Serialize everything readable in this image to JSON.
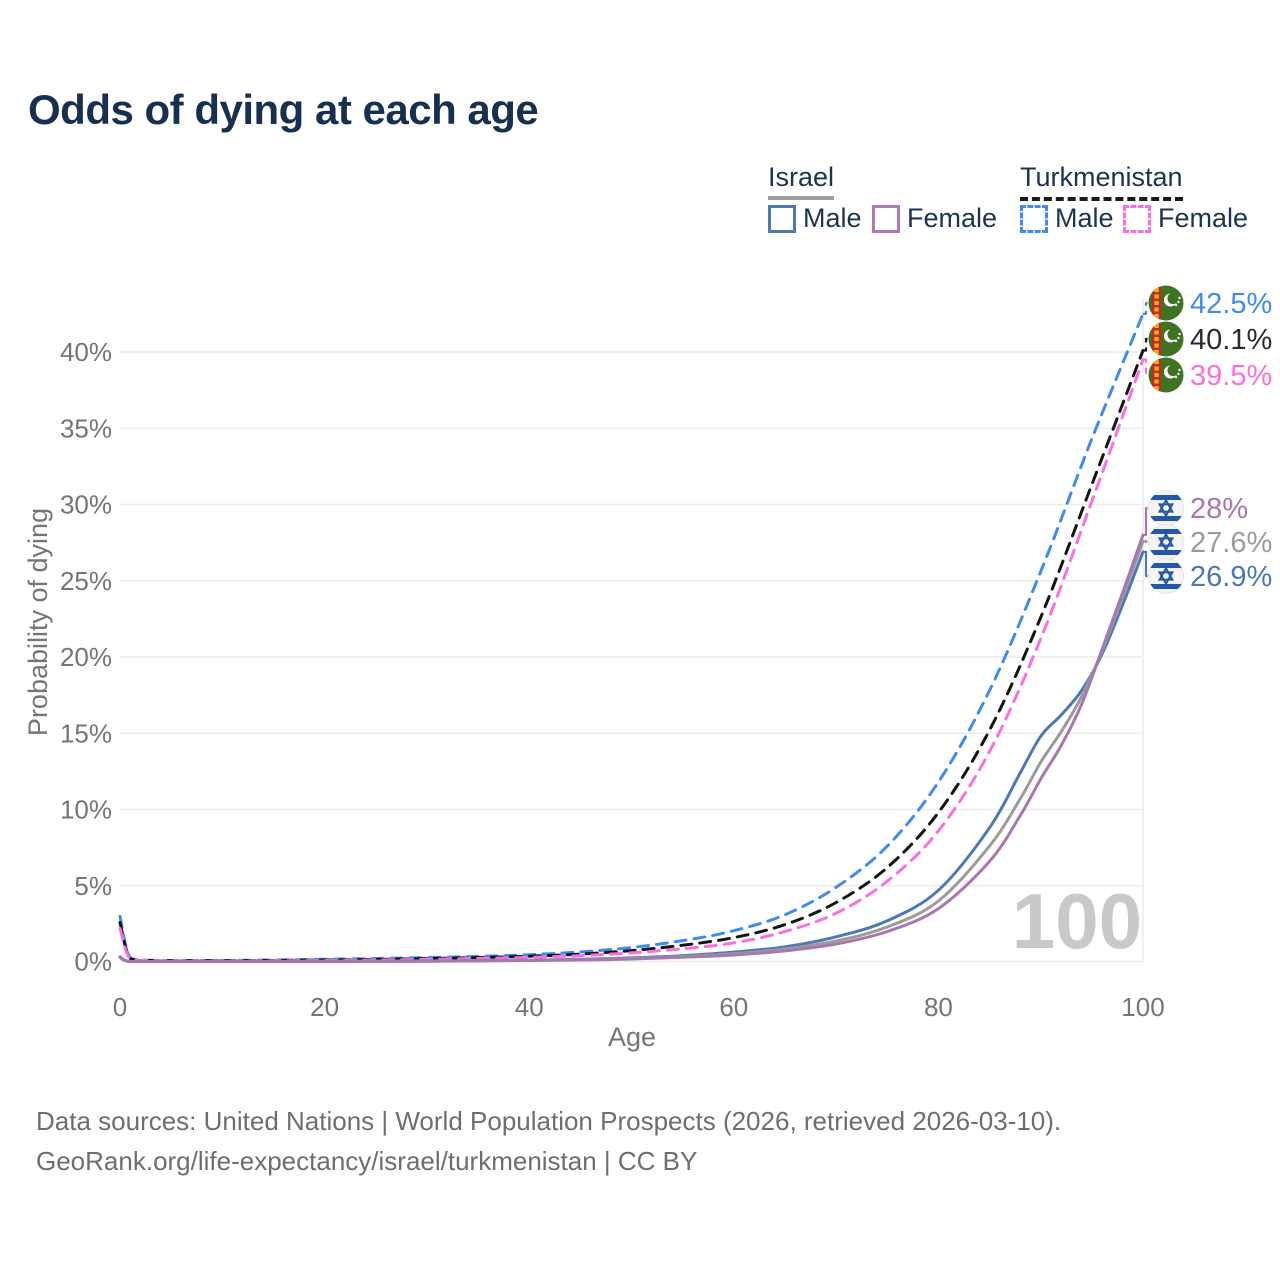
{
  "title": "Odds of dying at each age",
  "legend": {
    "groups": [
      {
        "label": "Israel",
        "line_style": "solid",
        "underline_color": "#9e9e9e",
        "items": [
          {
            "label": "Male",
            "color": "#4b79b7"
          },
          {
            "label": "Female",
            "color": "#b27ab5"
          }
        ]
      },
      {
        "label": "Turkmenistan",
        "line_style": "dashed",
        "underline_color": "#1a1a1a",
        "items": [
          {
            "label": "Male",
            "color": "#3e8bf3"
          },
          {
            "label": "Female",
            "color": "#fa6fe2"
          }
        ]
      }
    ]
  },
  "chart_data": {
    "type": "line",
    "title": "Odds of dying at each age",
    "xlabel": "Age",
    "ylabel": "Probability of dying",
    "xlim": [
      0,
      100
    ],
    "ylim": [
      0,
      44
    ],
    "grid": "horizontal",
    "watermark": "100",
    "x_ticks": [
      {
        "label": "0",
        "value": 0
      },
      {
        "label": "20",
        "value": 20
      },
      {
        "label": "40",
        "value": 40
      },
      {
        "label": "60",
        "value": 60
      },
      {
        "label": "80",
        "value": 80
      },
      {
        "label": "100",
        "value": 100
      }
    ],
    "y_ticks": [
      {
        "label": "0%",
        "value": 0
      },
      {
        "label": "5%",
        "value": 5
      },
      {
        "label": "10%",
        "value": 10
      },
      {
        "label": "15%",
        "value": 15
      },
      {
        "label": "20%",
        "value": 20
      },
      {
        "label": "25%",
        "value": 25
      },
      {
        "label": "30%",
        "value": 30
      },
      {
        "label": "35%",
        "value": 35
      },
      {
        "label": "40%",
        "value": 40
      }
    ],
    "series": [
      {
        "name": "turkmenistan_male",
        "country": "Turkmenistan",
        "sex": "Male",
        "color": "#3e8bf3",
        "dash": true,
        "flag": "turkmenistan",
        "end_value_pct": 42.5,
        "points": [
          [
            0,
            3.0
          ],
          [
            1,
            0.28
          ],
          [
            3,
            0.12
          ],
          [
            5,
            0.1
          ],
          [
            10,
            0.1
          ],
          [
            15,
            0.13
          ],
          [
            20,
            0.18
          ],
          [
            25,
            0.23
          ],
          [
            30,
            0.29
          ],
          [
            35,
            0.37
          ],
          [
            40,
            0.48
          ],
          [
            45,
            0.66
          ],
          [
            50,
            0.95
          ],
          [
            55,
            1.4
          ],
          [
            60,
            2.05
          ],
          [
            65,
            3.1
          ],
          [
            70,
            4.9
          ],
          [
            75,
            7.6
          ],
          [
            80,
            11.8
          ],
          [
            85,
            17.8
          ],
          [
            90,
            25.6
          ],
          [
            95,
            34.3
          ],
          [
            100,
            42.5
          ]
        ]
      },
      {
        "name": "turkmenistan_total",
        "country": "Turkmenistan",
        "sex": "Both",
        "color": "#141414",
        "dash": true,
        "flag": "turkmenistan",
        "end_value_pct": 40.1,
        "points": [
          [
            0,
            2.6
          ],
          [
            1,
            0.24
          ],
          [
            3,
            0.1
          ],
          [
            5,
            0.08
          ],
          [
            10,
            0.08
          ],
          [
            15,
            0.1
          ],
          [
            20,
            0.13
          ],
          [
            25,
            0.17
          ],
          [
            30,
            0.22
          ],
          [
            35,
            0.29
          ],
          [
            40,
            0.38
          ],
          [
            45,
            0.52
          ],
          [
            50,
            0.75
          ],
          [
            55,
            1.1
          ],
          [
            60,
            1.6
          ],
          [
            65,
            2.45
          ],
          [
            70,
            3.9
          ],
          [
            75,
            6.2
          ],
          [
            80,
            9.8
          ],
          [
            85,
            15.2
          ],
          [
            90,
            22.6
          ],
          [
            95,
            31.3
          ],
          [
            100,
            40.1
          ]
        ]
      },
      {
        "name": "turkmenistan_female",
        "country": "Turkmenistan",
        "sex": "Female",
        "color": "#fa6fe2",
        "dash": true,
        "flag": "turkmenistan",
        "end_value_pct": 39.5,
        "points": [
          [
            0,
            2.2
          ],
          [
            1,
            0.2
          ],
          [
            3,
            0.09
          ],
          [
            5,
            0.07
          ],
          [
            10,
            0.06
          ],
          [
            15,
            0.08
          ],
          [
            20,
            0.1
          ],
          [
            25,
            0.13
          ],
          [
            30,
            0.17
          ],
          [
            35,
            0.23
          ],
          [
            40,
            0.3
          ],
          [
            45,
            0.42
          ],
          [
            50,
            0.6
          ],
          [
            55,
            0.87
          ],
          [
            60,
            1.25
          ],
          [
            65,
            2.0
          ],
          [
            70,
            3.2
          ],
          [
            75,
            5.3
          ],
          [
            80,
            8.6
          ],
          [
            85,
            13.8
          ],
          [
            90,
            21.2
          ],
          [
            95,
            30.2
          ],
          [
            100,
            39.5
          ]
        ]
      },
      {
        "name": "israel_male",
        "country": "Israel",
        "sex": "Male",
        "color": "#4b79b7",
        "dash": false,
        "flag": "israel",
        "end_value_pct": 26.9,
        "points": [
          [
            0,
            0.35
          ],
          [
            1,
            0.03
          ],
          [
            5,
            0.02
          ],
          [
            10,
            0.02
          ],
          [
            15,
            0.04
          ],
          [
            20,
            0.05
          ],
          [
            25,
            0.06
          ],
          [
            30,
            0.07
          ],
          [
            35,
            0.09
          ],
          [
            40,
            0.12
          ],
          [
            45,
            0.18
          ],
          [
            50,
            0.27
          ],
          [
            55,
            0.42
          ],
          [
            60,
            0.65
          ],
          [
            65,
            1.0
          ],
          [
            70,
            1.65
          ],
          [
            75,
            2.7
          ],
          [
            80,
            4.7
          ],
          [
            85,
            8.8
          ],
          [
            88,
            12.4
          ],
          [
            90,
            14.8
          ],
          [
            92,
            16.2
          ],
          [
            94,
            17.8
          ],
          [
            96,
            20.2
          ],
          [
            98,
            23.4
          ],
          [
            100,
            26.9
          ]
        ]
      },
      {
        "name": "israel_total",
        "country": "Israel",
        "sex": "Both",
        "color": "#9b9b9b",
        "dash": false,
        "flag": "israel",
        "end_value_pct": 27.6,
        "points": [
          [
            0,
            0.32
          ],
          [
            1,
            0.03
          ],
          [
            5,
            0.02
          ],
          [
            10,
            0.02
          ],
          [
            15,
            0.03
          ],
          [
            20,
            0.04
          ],
          [
            25,
            0.05
          ],
          [
            30,
            0.06
          ],
          [
            35,
            0.08
          ],
          [
            40,
            0.11
          ],
          [
            45,
            0.15
          ],
          [
            50,
            0.23
          ],
          [
            55,
            0.36
          ],
          [
            60,
            0.54
          ],
          [
            65,
            0.85
          ],
          [
            70,
            1.38
          ],
          [
            75,
            2.3
          ],
          [
            80,
            4.0
          ],
          [
            85,
            7.6
          ],
          [
            88,
            10.7
          ],
          [
            90,
            13.1
          ],
          [
            92,
            15.1
          ],
          [
            94,
            17.4
          ],
          [
            96,
            20.4
          ],
          [
            98,
            23.9
          ],
          [
            100,
            27.6
          ]
        ]
      },
      {
        "name": "israel_female",
        "country": "Israel",
        "sex": "Female",
        "color": "#a878ad",
        "dash": false,
        "flag": "israel",
        "end_value_pct": 28.0,
        "points": [
          [
            0,
            0.3
          ],
          [
            1,
            0.03
          ],
          [
            5,
            0.02
          ],
          [
            10,
            0.02
          ],
          [
            15,
            0.02
          ],
          [
            20,
            0.03
          ],
          [
            25,
            0.04
          ],
          [
            30,
            0.05
          ],
          [
            35,
            0.07
          ],
          [
            40,
            0.1
          ],
          [
            45,
            0.13
          ],
          [
            50,
            0.2
          ],
          [
            55,
            0.31
          ],
          [
            60,
            0.46
          ],
          [
            65,
            0.73
          ],
          [
            70,
            1.18
          ],
          [
            75,
            2.0
          ],
          [
            80,
            3.5
          ],
          [
            85,
            6.6
          ],
          [
            88,
            9.6
          ],
          [
            90,
            12.0
          ],
          [
            92,
            14.2
          ],
          [
            94,
            16.9
          ],
          [
            96,
            20.5
          ],
          [
            98,
            24.2
          ],
          [
            100,
            28.0
          ]
        ]
      }
    ]
  },
  "end_labels": [
    {
      "series": "turkmenistan_male",
      "value": "42.5%",
      "color": "#3e8bf3",
      "flag": "turkmenistan"
    },
    {
      "series": "turkmenistan_total",
      "value": "40.1%",
      "color": "#2a2a2a",
      "flag": "turkmenistan"
    },
    {
      "series": "turkmenistan_female",
      "value": "39.5%",
      "color": "#fa6fe2",
      "flag": "turkmenistan"
    },
    {
      "series": "israel_female",
      "value": "28%",
      "color": "#a878ad",
      "flag": "israel"
    },
    {
      "series": "israel_total",
      "value": "27.6%",
      "color": "#9b9b9b",
      "flag": "israel"
    },
    {
      "series": "israel_male",
      "value": "26.9%",
      "color": "#4b79b7",
      "flag": "israel"
    }
  ],
  "footer": {
    "line1": "Data sources: United Nations | World Population Prospects (2026, retrieved 2026-03-10).",
    "line2": "GeoRank.org/life-expectancy/israel/turkmenistan | CC BY"
  }
}
